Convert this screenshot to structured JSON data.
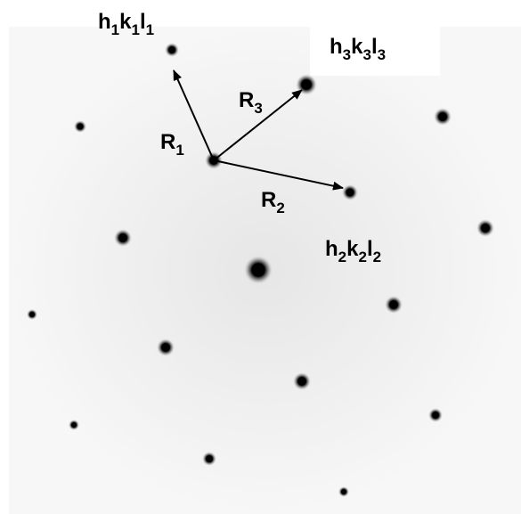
{
  "labels": [
    {
      "parts": [
        "h",
        "1",
        "k",
        "1",
        "l",
        "1"
      ]
    },
    {
      "parts": [
        "h",
        "3",
        "k",
        "3",
        "l",
        "3"
      ]
    },
    {
      "parts": [
        "h",
        "2",
        "k",
        "2",
        "l",
        "2"
      ]
    },
    {
      "parts": [
        "R",
        "1"
      ]
    },
    {
      "parts": [
        "R",
        "2"
      ]
    },
    {
      "parts": [
        "R",
        "3"
      ]
    }
  ]
}
